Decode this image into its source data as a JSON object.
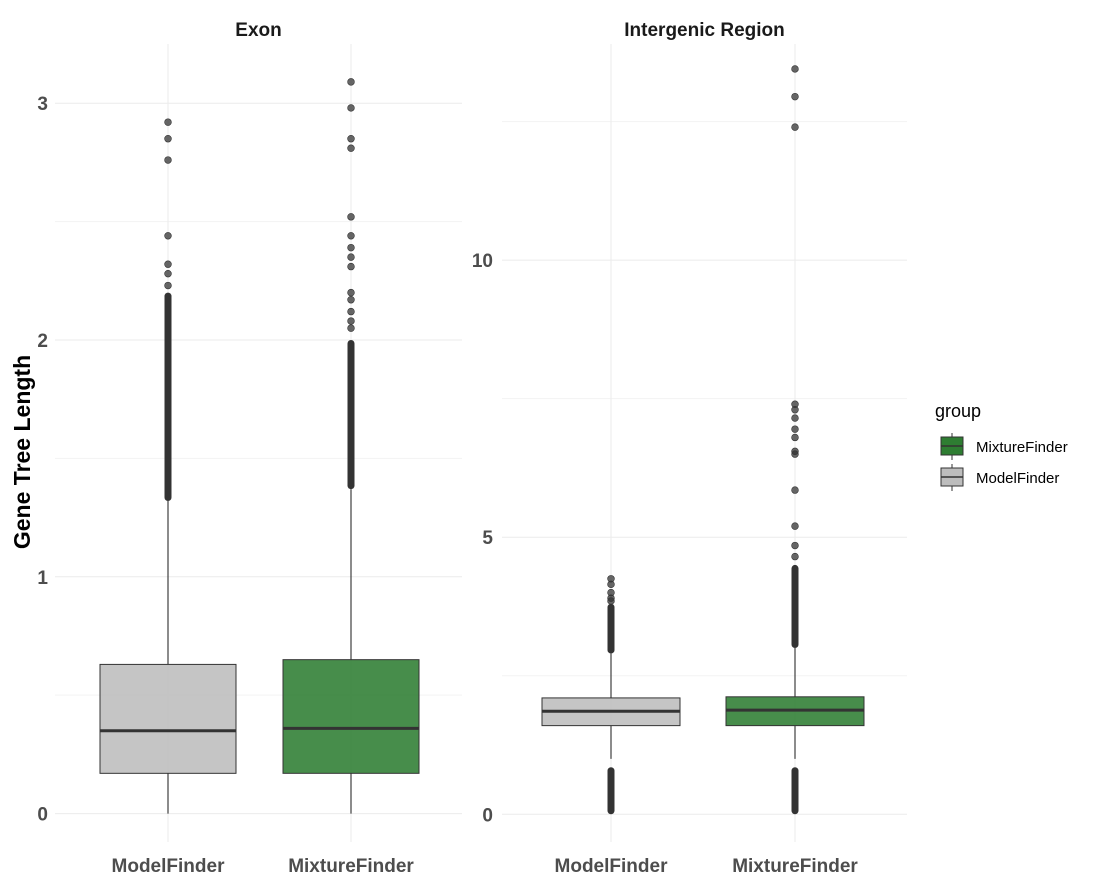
{
  "chart_data": {
    "type": "box",
    "ylabel": "Gene Tree Length",
    "legend": {
      "title": "group",
      "position": "right",
      "entries": [
        {
          "name": "MixtureFinder",
          "color": "#2e7d32"
        },
        {
          "name": "ModelFinder",
          "color": "#bdbdbd"
        }
      ]
    },
    "categories": [
      "ModelFinder",
      "MixtureFinder"
    ],
    "group_colors": {
      "ModelFinder": "#bdbdbd",
      "MixtureFinder": "#2e7d32"
    },
    "grid": true,
    "facets": [
      {
        "title": "Exon",
        "ylim": [
          -0.12,
          3.25
        ],
        "yticks": [
          0,
          1,
          2,
          3
        ],
        "boxes": [
          {
            "group": "ModelFinder",
            "whisker_low": 0.0,
            "q1": 0.17,
            "median": 0.35,
            "q3": 0.63,
            "whisker_high": 1.32,
            "outlier_band": [
              1.32,
              2.2
            ],
            "outliers": [
              2.23,
              2.28,
              2.32,
              2.44,
              2.76,
              2.85,
              2.92
            ]
          },
          {
            "group": "MixtureFinder",
            "whisker_low": 0.0,
            "q1": 0.17,
            "median": 0.36,
            "q3": 0.65,
            "whisker_high": 1.37,
            "outlier_band": [
              1.37,
              2.0
            ],
            "outliers": [
              2.05,
              2.08,
              2.12,
              2.17,
              2.2,
              2.31,
              2.35,
              2.39,
              2.44,
              2.52,
              2.81,
              2.85,
              2.98,
              3.09
            ]
          }
        ]
      },
      {
        "title": "Intergenic Region",
        "ylim": [
          -0.5,
          13.9
        ],
        "yticks": [
          0,
          5,
          10
        ],
        "boxes": [
          {
            "group": "ModelFinder",
            "whisker_low": 1.0,
            "q1": 1.6,
            "median": 1.86,
            "q3": 2.1,
            "whisker_high": 2.9,
            "outlier_band_low": [
              0.0,
              0.85
            ],
            "outlier_band": [
              2.9,
              3.8
            ],
            "outliers": [
              3.85,
              3.9,
              4.0,
              4.15,
              4.25
            ]
          },
          {
            "group": "MixtureFinder",
            "whisker_low": 1.0,
            "q1": 1.6,
            "median": 1.88,
            "q3": 2.12,
            "whisker_high": 3.0,
            "outlier_band_low": [
              0.0,
              0.85
            ],
            "outlier_band": [
              3.0,
              4.5
            ],
            "outliers": [
              4.65,
              4.85,
              5.2,
              5.85,
              6.5,
              6.55,
              6.8,
              6.95,
              7.15,
              7.3,
              7.4,
              12.4,
              12.95,
              13.45
            ]
          }
        ]
      }
    ]
  }
}
